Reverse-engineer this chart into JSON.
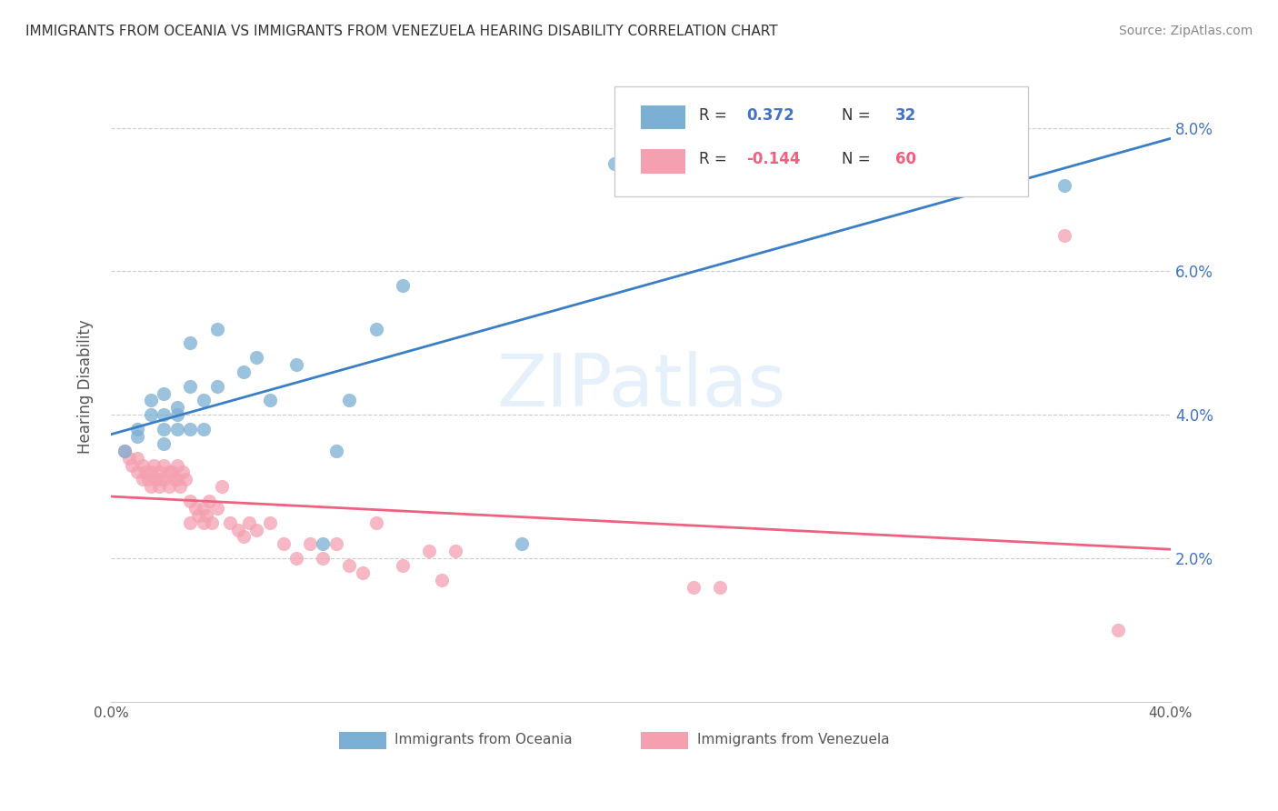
{
  "title": "IMMIGRANTS FROM OCEANIA VS IMMIGRANTS FROM VENEZUELA HEARING DISABILITY CORRELATION CHART",
  "source": "Source: ZipAtlas.com",
  "ylabel": "Hearing Disability",
  "y_ticks": [
    0.02,
    0.04,
    0.06,
    0.08
  ],
  "y_tick_labels": [
    "2.0%",
    "4.0%",
    "6.0%",
    "8.0%"
  ],
  "xlim": [
    0.0,
    0.4
  ],
  "ylim": [
    0.0,
    0.088
  ],
  "legend_label1": "Immigrants from Oceania",
  "legend_label2": "Immigrants from Venezuela",
  "R1": 0.372,
  "N1": 32,
  "R2": -0.144,
  "N2": 60,
  "color_oceania": "#7bafd4",
  "color_venezuela": "#f4a0b0",
  "color_line_oceania": "#3a7ec6",
  "color_line_venezuela": "#f06080",
  "watermark": "ZIPatlas",
  "oceania_x": [
    0.005,
    0.01,
    0.01,
    0.015,
    0.015,
    0.02,
    0.02,
    0.02,
    0.02,
    0.025,
    0.025,
    0.025,
    0.03,
    0.03,
    0.03,
    0.035,
    0.035,
    0.04,
    0.04,
    0.05,
    0.055,
    0.06,
    0.07,
    0.08,
    0.085,
    0.09,
    0.1,
    0.11,
    0.155,
    0.19,
    0.27,
    0.36
  ],
  "oceania_y": [
    0.035,
    0.037,
    0.038,
    0.04,
    0.042,
    0.036,
    0.038,
    0.04,
    0.043,
    0.038,
    0.04,
    0.041,
    0.038,
    0.044,
    0.05,
    0.038,
    0.042,
    0.052,
    0.044,
    0.046,
    0.048,
    0.042,
    0.047,
    0.022,
    0.035,
    0.042,
    0.052,
    0.058,
    0.022,
    0.075,
    0.075,
    0.072
  ],
  "venezuela_x": [
    0.005,
    0.007,
    0.008,
    0.01,
    0.01,
    0.012,
    0.012,
    0.013,
    0.014,
    0.015,
    0.015,
    0.016,
    0.017,
    0.018,
    0.018,
    0.019,
    0.02,
    0.02,
    0.022,
    0.022,
    0.023,
    0.024,
    0.025,
    0.025,
    0.026,
    0.027,
    0.028,
    0.03,
    0.03,
    0.032,
    0.033,
    0.035,
    0.035,
    0.036,
    0.037,
    0.038,
    0.04,
    0.042,
    0.045,
    0.048,
    0.05,
    0.052,
    0.055,
    0.06,
    0.065,
    0.07,
    0.075,
    0.08,
    0.085,
    0.09,
    0.095,
    0.1,
    0.11,
    0.12,
    0.125,
    0.13,
    0.22,
    0.23,
    0.36,
    0.38
  ],
  "venezuela_y": [
    0.035,
    0.034,
    0.033,
    0.032,
    0.034,
    0.031,
    0.033,
    0.032,
    0.031,
    0.03,
    0.032,
    0.033,
    0.031,
    0.03,
    0.032,
    0.031,
    0.033,
    0.031,
    0.032,
    0.03,
    0.032,
    0.031,
    0.033,
    0.031,
    0.03,
    0.032,
    0.031,
    0.025,
    0.028,
    0.027,
    0.026,
    0.025,
    0.027,
    0.026,
    0.028,
    0.025,
    0.027,
    0.03,
    0.025,
    0.024,
    0.023,
    0.025,
    0.024,
    0.025,
    0.022,
    0.02,
    0.022,
    0.02,
    0.022,
    0.019,
    0.018,
    0.025,
    0.019,
    0.021,
    0.017,
    0.021,
    0.016,
    0.016,
    0.065,
    0.01
  ]
}
